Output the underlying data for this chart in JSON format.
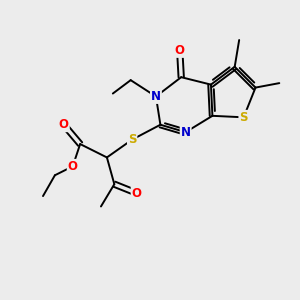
{
  "bg_color": "#ececec",
  "atom_colors": {
    "O": "#ff0000",
    "N": "#0000cc",
    "S": "#ccaa00",
    "C": "#000000"
  },
  "bond_color": "#000000",
  "lw": 1.4,
  "fs": 8.5
}
